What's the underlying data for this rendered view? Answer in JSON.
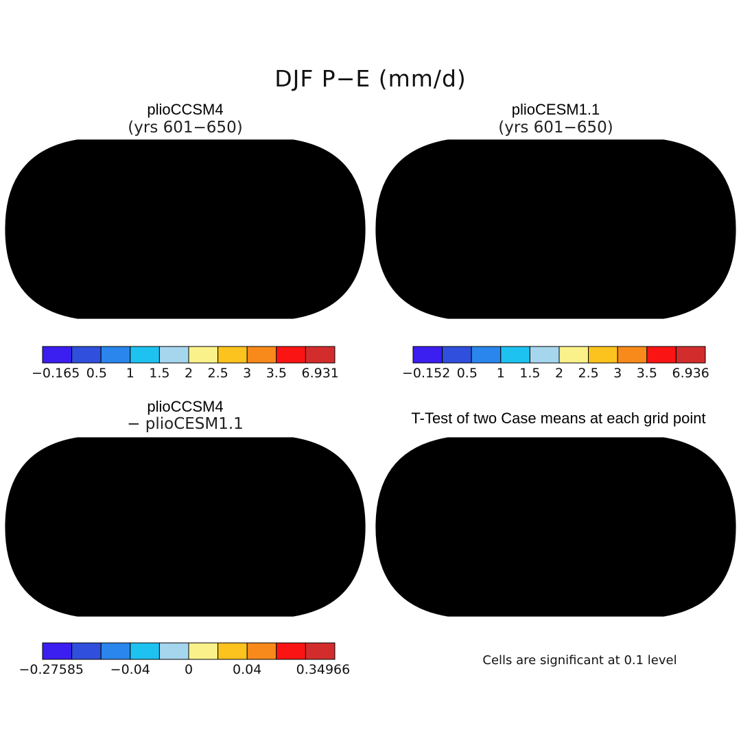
{
  "title": "DJF P−E (mm/d)",
  "panels": [
    {
      "id": "p1",
      "title": "plioCCSM4",
      "subtitle": "(yrs 601−650)"
    },
    {
      "id": "p2",
      "title": "plioCESM1.1",
      "subtitle": "(yrs 601−650)"
    },
    {
      "id": "p3",
      "title": "plioCCSM4",
      "subtitle": "− plioCESM1.1"
    },
    {
      "id": "p4",
      "title": "T-Test of two Case means at each grid point",
      "subtitle": ""
    }
  ],
  "colorbars": [
    {
      "id": "cb1",
      "labels": [
        "−0.165",
        "0.5",
        "1",
        "1.5",
        "2",
        "2.5",
        "3",
        "3.5",
        "6.931"
      ]
    },
    {
      "id": "cb2",
      "labels": [
        "−0.152",
        "0.5",
        "1",
        "1.5",
        "2",
        "2.5",
        "3",
        "3.5",
        "6.936"
      ]
    },
    {
      "id": "cb3",
      "labels": [
        "−0.27585",
        "−0.04",
        "0",
        "0.04",
        "0.34966"
      ]
    }
  ],
  "palette": [
    "#3b1ef0",
    "#2f4fdc",
    "#2a86ec",
    "#1ec2f0",
    "#a6d6ee",
    "#faf18a",
    "#fcc21e",
    "#f78a1a",
    "#fa1414",
    "#d22c2c"
  ],
  "ttest_color": "#fa1010",
  "footnote": "Cells are significant at 0.1 level"
}
